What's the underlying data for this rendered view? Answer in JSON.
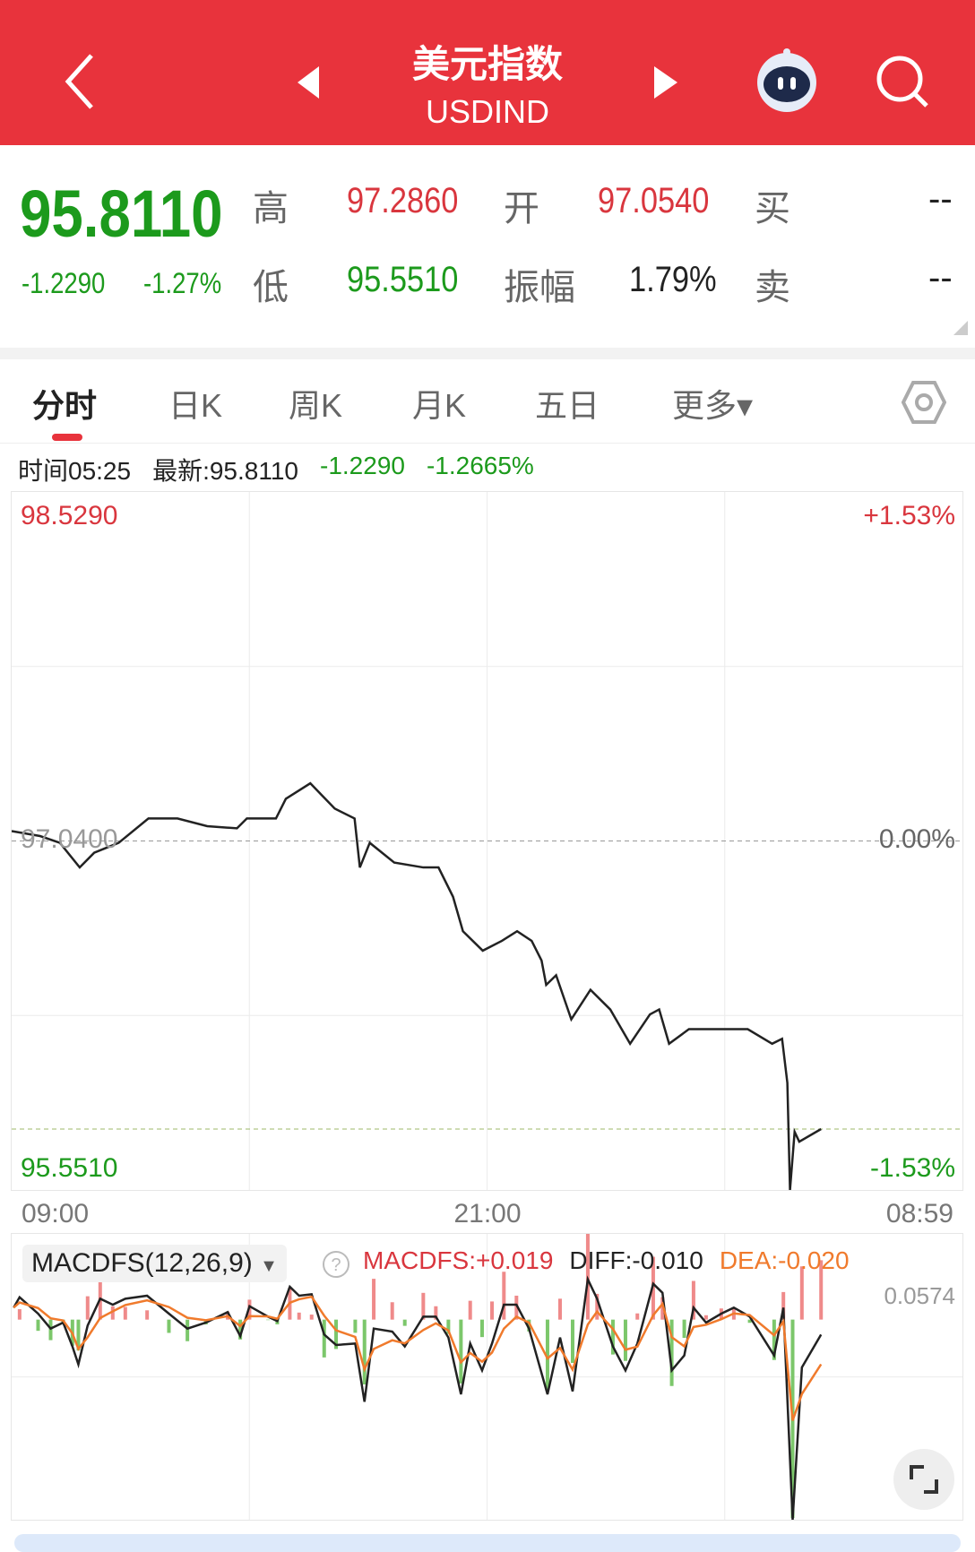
{
  "header": {
    "title": "美元指数",
    "code": "USDIND",
    "icons": [
      "back-chevron-icon",
      "prev-triangle-icon",
      "next-triangle-icon",
      "robot-assistant-icon",
      "search-icon"
    ]
  },
  "quote": {
    "price": "95.8110",
    "change": "-1.2290",
    "change_pct": "-1.27%",
    "high_label": "高",
    "high": "97.2860",
    "open_label": "开",
    "open": "97.0540",
    "buy_label": "买",
    "buy": "--",
    "low_label": "低",
    "low": "95.5510",
    "amplitude_label": "振幅",
    "amplitude": "1.79%",
    "sell_label": "卖",
    "sell": "--"
  },
  "tabs": [
    {
      "label": "分时",
      "active": true
    },
    {
      "label": "日K"
    },
    {
      "label": "周K"
    },
    {
      "label": "月K"
    },
    {
      "label": "五日"
    },
    {
      "label": "更多▾"
    }
  ],
  "info": {
    "time": "时间05:25",
    "latest": "最新:95.8110",
    "change": "-1.2290",
    "change_pct": "-1.2665%"
  },
  "colors": {
    "header": "#e8333c",
    "up": "#d9363e",
    "down": "#1c9a1c",
    "dea": "#f07a2c",
    "diff": "#222222"
  },
  "chart_data": [
    {
      "type": "line",
      "ylim": [
        95.551,
        98.529
      ],
      "base": 97.04,
      "y_labels": {
        "top": "98.5290",
        "base": "97.0400",
        "bottom": "95.5510"
      },
      "pct_labels": {
        "top": "+1.53%",
        "base": "0.00%",
        "bottom": "-1.53%"
      },
      "x_ticks": [
        "09:00",
        "21:00",
        "08:59"
      ],
      "points": [
        [
          "09:00",
          97.082
        ],
        [
          "09:43",
          97.061
        ],
        [
          "10:13",
          97.032
        ],
        [
          "10:43",
          96.927
        ],
        [
          "11:05",
          96.99
        ],
        [
          "11:42",
          97.032
        ],
        [
          "12:27",
          97.136
        ],
        [
          "13:11",
          97.136
        ],
        [
          "13:56",
          97.103
        ],
        [
          "14:41",
          97.094
        ],
        [
          "14:56",
          97.136
        ],
        [
          "15:40",
          97.136
        ],
        [
          "15:55",
          97.22
        ],
        [
          "16:32",
          97.286
        ],
        [
          "17:09",
          97.178
        ],
        [
          "17:39",
          97.136
        ],
        [
          "17:47",
          96.927
        ],
        [
          "18:02",
          97.032
        ],
        [
          "18:39",
          96.948
        ],
        [
          "19:23",
          96.927
        ],
        [
          "19:46",
          96.927
        ],
        [
          "20:08",
          96.802
        ],
        [
          "20:23",
          96.655
        ],
        [
          "20:53",
          96.572
        ],
        [
          "21:22",
          96.614
        ],
        [
          "21:45",
          96.655
        ],
        [
          "22:07",
          96.614
        ],
        [
          "22:22",
          96.53
        ],
        [
          "22:29",
          96.426
        ],
        [
          "22:44",
          96.467
        ],
        [
          "23:07",
          96.279
        ],
        [
          "23:36",
          96.405
        ],
        [
          "00:06",
          96.321
        ],
        [
          "00:36",
          96.175
        ],
        [
          "01:06",
          96.3
        ],
        [
          "01:20",
          96.321
        ],
        [
          "01:35",
          96.175
        ],
        [
          "02:05",
          96.237
        ],
        [
          "03:05",
          96.237
        ],
        [
          "03:34",
          96.237
        ],
        [
          "04:11",
          96.175
        ],
        [
          "04:26",
          96.196
        ],
        [
          "04:34",
          96.008
        ],
        [
          "04:38",
          95.551
        ],
        [
          "04:45",
          95.799
        ],
        [
          "04:52",
          95.757
        ],
        [
          "05:25",
          95.811
        ]
      ],
      "current": 95.811
    },
    {
      "type": "line",
      "name": "MACDFS(12,26,9)",
      "legend": {
        "macdfs": "MACDFS:+0.019",
        "diff": "DIFF:-0.010",
        "dea": "DEA:-0.020",
        "max": "0.0574"
      },
      "ylim": [
        -0.134,
        0.0574
      ],
      "diff": [
        [
          "09:03",
          0.008
        ],
        [
          "09:12",
          0.015
        ],
        [
          "09:40",
          0.004
        ],
        [
          "09:59",
          -0.006
        ],
        [
          "10:18",
          -0.002
        ],
        [
          "10:32",
          -0.018
        ],
        [
          "10:41",
          -0.03
        ],
        [
          "10:55",
          -0.004
        ],
        [
          "11:14",
          0.014
        ],
        [
          "11:33",
          0.01
        ],
        [
          "11:52",
          0.014
        ],
        [
          "12:25",
          0.016
        ],
        [
          "12:58",
          0.004
        ],
        [
          "13:26",
          -0.006
        ],
        [
          "13:54",
          -0.002
        ],
        [
          "14:27",
          0.005
        ],
        [
          "14:46",
          -0.011
        ],
        [
          "15:00",
          0.009
        ],
        [
          "15:28",
          0.002
        ],
        [
          "15:42",
          -0.001
        ],
        [
          "16:01",
          0.022
        ],
        [
          "16:15",
          0.016
        ],
        [
          "16:34",
          0.017
        ],
        [
          "16:53",
          -0.01
        ],
        [
          "17:11",
          -0.017
        ],
        [
          "17:40",
          -0.016
        ],
        [
          "17:54",
          -0.055
        ],
        [
          "18:08",
          -0.006
        ],
        [
          "18:36",
          -0.008
        ],
        [
          "18:55",
          -0.018
        ],
        [
          "19:23",
          0.002
        ],
        [
          "19:42",
          0.002
        ],
        [
          "20:01",
          -0.012
        ],
        [
          "20:20",
          -0.05
        ],
        [
          "20:34",
          -0.016
        ],
        [
          "20:52",
          -0.034
        ],
        [
          "21:07",
          -0.016
        ],
        [
          "21:25",
          0.01
        ],
        [
          "21:44",
          0.01
        ],
        [
          "22:03",
          -0.006
        ],
        [
          "22:31",
          -0.05
        ],
        [
          "22:50",
          -0.012
        ],
        [
          "23:09",
          -0.048
        ],
        [
          "23:32",
          0.027
        ],
        [
          "23:46",
          0.014
        ],
        [
          "00:10",
          -0.018
        ],
        [
          "00:29",
          -0.034
        ],
        [
          "00:47",
          -0.016
        ],
        [
          "01:11",
          0.024
        ],
        [
          "01:25",
          0.018
        ],
        [
          "01:39",
          -0.034
        ],
        [
          "01:58",
          -0.024
        ],
        [
          "02:12",
          0.008
        ],
        [
          "02:31",
          -0.002
        ],
        [
          "02:54",
          0.004
        ],
        [
          "03:13",
          0.008
        ],
        [
          "03:37",
          0.002
        ],
        [
          "04:14",
          -0.024
        ],
        [
          "04:28",
          0.008
        ],
        [
          "04:42",
          -0.134
        ],
        [
          "04:56",
          -0.032
        ],
        [
          "05:25",
          -0.01
        ]
      ]
    }
  ]
}
